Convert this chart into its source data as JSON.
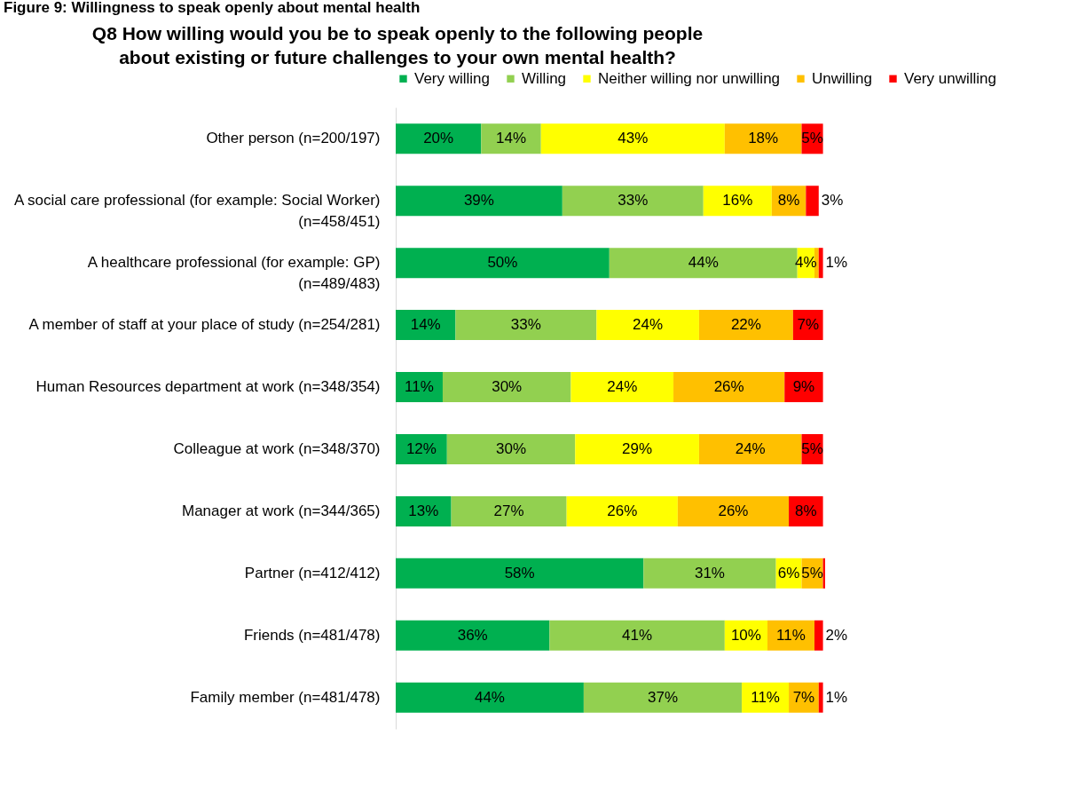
{
  "chart_data": {
    "type": "bar",
    "orientation": "horizontal",
    "stacked": true,
    "title": "Figure 9: Willingness to speak openly about mental health",
    "subtitle": "Q8 How willing would you be to speak openly to the following people about existing or future challenges to your own mental health?",
    "legend": "top",
    "grid": false,
    "categories": [
      "Other person (n=200/197)",
      "A social care professional (for example: Social Worker) (n=458/451)",
      "A healthcare professional (for example: GP) (n=489/483)",
      "A member of staff at your place of study (n=254/281)",
      "Human Resources department at work (n=348/354)",
      "Colleague at work (n=348/370)",
      "Manager at work (n=344/365)",
      "Partner (n=412/412)",
      "Friends (n=481/478)",
      "Family member (n=481/478)"
    ],
    "series": [
      {
        "name": "Very willing",
        "color": "#00b050",
        "values": [
          20,
          39,
          50,
          14,
          11,
          12,
          13,
          58,
          36,
          44
        ],
        "value_labels": [
          "20%",
          "39%",
          "50%",
          "14%",
          "11%",
          "12%",
          "13%",
          "58%",
          "36%",
          "44%"
        ]
      },
      {
        "name": "Willing",
        "color": "#92d050",
        "values": [
          14,
          33,
          44,
          33,
          30,
          30,
          27,
          31,
          41,
          37
        ],
        "value_labels": [
          "14%",
          "33%",
          "44%",
          "33%",
          "30%",
          "30%",
          "27%",
          "31%",
          "41%",
          "37%"
        ]
      },
      {
        "name": "Neither willing nor unwilling",
        "color": "#ffff00",
        "values": [
          43,
          16,
          4,
          24,
          24,
          29,
          26,
          6,
          10,
          11
        ],
        "value_labels": [
          "43%",
          "16%",
          "4%",
          "24%",
          "24%",
          "29%",
          "26%",
          "6%",
          "10%",
          "11%"
        ]
      },
      {
        "name": "Unwilling",
        "color": "#ffc000",
        "values": [
          18,
          8,
          1,
          22,
          26,
          24,
          26,
          5,
          11,
          7
        ],
        "value_labels": [
          "18%",
          "8%",
          null,
          "22%",
          "26%",
          "24%",
          "26%",
          "5%",
          "11%",
          "7%"
        ]
      },
      {
        "name": "Very unwilling",
        "color": "#ff0000",
        "values": [
          5,
          3,
          1,
          7,
          9,
          5,
          8,
          0.5,
          2,
          1
        ],
        "value_labels": [
          "5%",
          "3%",
          "1%",
          "7%",
          "9%",
          "5%",
          "8%",
          null,
          "2%",
          "1%"
        ]
      }
    ]
  }
}
